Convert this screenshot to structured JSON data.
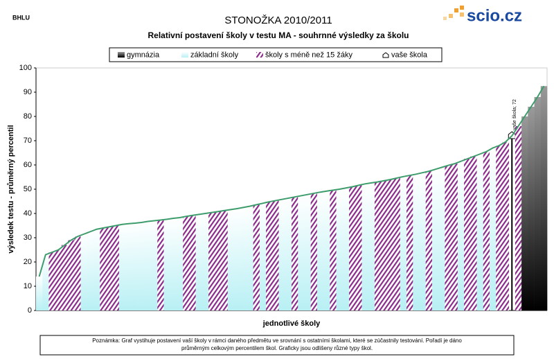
{
  "header": {
    "code": "BHLU",
    "logo": "scio.cz"
  },
  "chart_data": {
    "type": "area",
    "title": "STONOŽKA 2010/2011",
    "subtitle": "Relativní postavení školy v testu MA - souhrnné výsledky za školu",
    "ylabel": "výsledek testu - průměrný percentil",
    "xlabel": "jednotlivé školy",
    "ylim": [
      0,
      100
    ],
    "yticks": [
      0,
      10,
      20,
      30,
      40,
      50,
      60,
      70,
      80,
      90,
      100
    ],
    "line_color": "#3c9c6c",
    "series": [
      {
        "name": "gymnázia",
        "color": "#777777"
      },
      {
        "name": "základní školy",
        "color": "#c8f4f6"
      },
      {
        "name": "školy s méně než 15 žáky",
        "color": "#8a2a8a"
      },
      {
        "name": "vaše škola",
        "color": "#000000"
      }
    ],
    "values": [
      14,
      23,
      24,
      25,
      27,
      29,
      30.5,
      31.5,
      32.5,
      33.5,
      34,
      34.5,
      35,
      35.5,
      35.8,
      36,
      36.3,
      36.7,
      37,
      37.3,
      37.6,
      38,
      38.3,
      38.8,
      39.2,
      39.6,
      40,
      40.4,
      40.8,
      41.2,
      41.6,
      42,
      42.5,
      43,
      43.6,
      44.2,
      44.8,
      45.3,
      45.8,
      46.3,
      46.8,
      47.3,
      47.8,
      48.3,
      48.8,
      49.2,
      49.6,
      50,
      50.5,
      51,
      51.6,
      52.2,
      52.6,
      53,
      53.5,
      54,
      54.6,
      55.2,
      55.7,
      56.2,
      56.8,
      57.4,
      58.2,
      59,
      59.8,
      60.5,
      61.5,
      62.5,
      63.5,
      64.5,
      65.5,
      67,
      68,
      69.5,
      72,
      76,
      80,
      84,
      88,
      92.5
    ],
    "school_types": [
      1,
      1,
      2,
      2,
      2,
      2,
      2,
      1,
      1,
      1,
      2,
      2,
      2,
      1,
      1,
      1,
      1,
      1,
      1,
      2,
      1,
      1,
      1,
      2,
      2,
      1,
      1,
      2,
      2,
      2,
      1,
      1,
      1,
      1,
      2,
      1,
      2,
      2,
      1,
      1,
      2,
      1,
      1,
      2,
      1,
      1,
      2,
      1,
      1,
      2,
      2,
      1,
      1,
      2,
      2,
      2,
      2,
      1,
      2,
      1,
      1,
      2,
      1,
      1,
      2,
      2,
      1,
      2,
      2,
      1,
      2,
      1,
      2,
      2,
      3,
      2,
      0,
      0,
      0,
      0
    ],
    "annotation": "vaše škola; 72",
    "note": [
      "Poznámka: Graf vystihuje postavení vaší školy v rámci daného předmětu ve srovnání s ostatními školami, které se zúčastnily testování. Pořadí je dáno",
      "průměrným celkovým percentilem škol. Graficky jsou odlišeny různé typy škol."
    ]
  }
}
